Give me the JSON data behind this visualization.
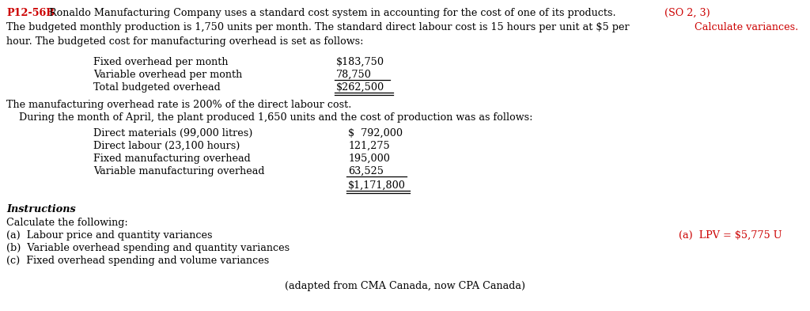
{
  "bg_color": "#ffffff",
  "problem_number": "P12-56B",
  "so_label": "(SO 2, 3)",
  "calc_label": "Calculate variances.",
  "main_text_line1": "Ronaldo Manufacturing Company uses a standard cost system in accounting for the cost of one of its products.",
  "main_text_line2": "The budgeted monthly production is 1,750 units per month. The standard direct labour cost is 15 hours per unit at $5 per",
  "main_text_line3": "hour. The budgeted cost for manufacturing overhead is set as follows:",
  "overhead_labels": [
    "Fixed overhead per month",
    "Variable overhead per month",
    "Total budgeted overhead"
  ],
  "overhead_values": [
    "$183,750",
    "78,750",
    "$262,500"
  ],
  "mfg_rate_text": "The manufacturing overhead rate is 200% of the direct labour cost.",
  "april_text": "    During the month of April, the plant produced 1,650 units and the cost of production was as follows:",
  "cost_labels": [
    "Direct materials (99,000 litres)",
    "Direct labour (23,100 hours)",
    "Fixed manufacturing overhead",
    "Variable manufacturing overhead"
  ],
  "cost_values": [
    "$  792,000",
    "121,275",
    "195,000",
    "63,525"
  ],
  "cost_total": "$1,171,800",
  "instructions_header": "Instructions",
  "instructions_intro": "Calculate the following:",
  "instructions_items": [
    "(a)  Labour price and quantity variances",
    "(b)  Variable overhead spending and quantity variances",
    "(c)  Fixed overhead spending and volume variances"
  ],
  "answer_label": "(a)  LPV = $5,775 U",
  "footer_text": "(adapted from CMA Canada, now CPA Canada)",
  "text_color": "#000000",
  "red_color": "#cc0000",
  "font_size": 9.2,
  "font_family": "serif"
}
